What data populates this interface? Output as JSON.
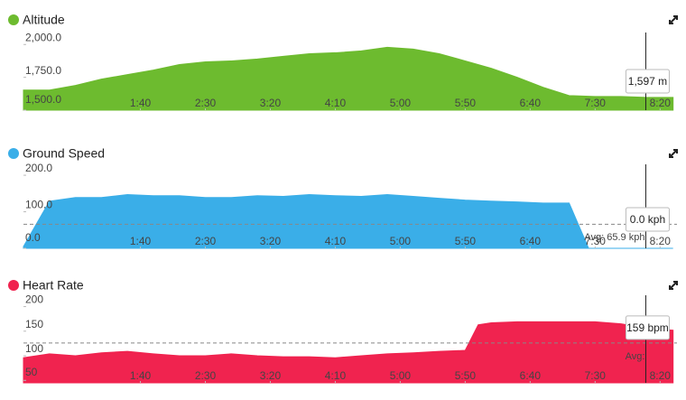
{
  "chart_data": [
    {
      "type": "area",
      "title": "Altitude",
      "color": "#6dbb2f",
      "x": [
        10,
        30,
        50,
        70,
        90,
        110,
        130,
        150,
        170,
        190,
        210,
        230,
        250,
        270,
        290,
        310,
        330,
        350,
        370,
        390,
        410,
        430,
        450,
        470,
        490,
        510
      ],
      "values": [
        1653,
        1653,
        1688,
        1736,
        1771,
        1805,
        1847,
        1868,
        1875,
        1889,
        1910,
        1930,
        1937,
        1951,
        1979,
        1965,
        1930,
        1875,
        1819,
        1750,
        1674,
        1611,
        1604,
        1604,
        1597,
        1597
      ],
      "xlim": [
        10,
        513
      ],
      "ylim": [
        1500,
        2050
      ],
      "yticks": [
        {
          "value": 1500,
          "label": "1,500.0"
        },
        {
          "value": 1750,
          "label": "1,750.0"
        },
        {
          "value": 2000,
          "label": "2,000.0"
        }
      ],
      "xticks": [
        {
          "value": 100,
          "label": "1:40"
        },
        {
          "value": 150,
          "label": "2:30"
        },
        {
          "value": 200,
          "label": "3:20"
        },
        {
          "value": 250,
          "label": "4:10"
        },
        {
          "value": 300,
          "label": "5:00"
        },
        {
          "value": 350,
          "label": "5:50"
        },
        {
          "value": 400,
          "label": "6:40"
        },
        {
          "value": 450,
          "label": "7:30"
        },
        {
          "value": 500,
          "label": "8:20"
        }
      ],
      "cursor": {
        "x": 489,
        "value": 1597,
        "label": "1,597 m"
      }
    },
    {
      "type": "area",
      "title": "Ground Speed",
      "color": "#3aaee8",
      "x": [
        10,
        30,
        50,
        70,
        90,
        110,
        130,
        150,
        170,
        190,
        210,
        230,
        250,
        270,
        290,
        310,
        330,
        350,
        370,
        390,
        410,
        430,
        445,
        470,
        490,
        510
      ],
      "values": [
        5,
        129,
        139,
        139,
        147,
        144,
        144,
        139,
        139,
        144,
        142,
        147,
        144,
        142,
        147,
        142,
        137,
        132,
        129,
        127,
        124,
        124,
        0,
        0,
        0,
        0
      ],
      "xlim": [
        10,
        513
      ],
      "ylim": [
        0,
        215
      ],
      "yticks": [
        {
          "value": 0,
          "label": "0.0"
        },
        {
          "value": 100,
          "label": "100.0"
        },
        {
          "value": 200,
          "label": "200.0"
        }
      ],
      "xticks": [
        {
          "value": 100,
          "label": "1:40"
        },
        {
          "value": 150,
          "label": "2:30"
        },
        {
          "value": 200,
          "label": "3:20"
        },
        {
          "value": 250,
          "label": "4:10"
        },
        {
          "value": 300,
          "label": "5:00"
        },
        {
          "value": 350,
          "label": "5:50"
        },
        {
          "value": 400,
          "label": "6:40"
        },
        {
          "value": 450,
          "label": "7:30"
        },
        {
          "value": 500,
          "label": "8:20"
        }
      ],
      "average": {
        "value": 65.9,
        "label": "Avg: 65.9 kph"
      },
      "cursor": {
        "x": 489,
        "value": 0,
        "label": "0.0 kph"
      }
    },
    {
      "type": "area",
      "title": "Heart Rate",
      "color": "#f0234f",
      "x": [
        10,
        30,
        50,
        70,
        90,
        110,
        130,
        150,
        170,
        190,
        210,
        230,
        250,
        270,
        290,
        310,
        330,
        350,
        360,
        370,
        390,
        410,
        430,
        450,
        470,
        490,
        510
      ],
      "values": [
        96,
        104,
        100,
        106,
        109,
        104,
        100,
        100,
        104,
        100,
        98,
        98,
        96,
        100,
        104,
        106,
        109,
        111,
        163,
        167,
        169,
        169,
        169,
        169,
        165,
        156,
        152
      ],
      "xlim": [
        10,
        513
      ],
      "ylim": [
        45,
        212
      ],
      "yticks": [
        50,
        100,
        150,
        200
      ],
      "xticks": [
        {
          "value": 100,
          "label": "1:40"
        },
        {
          "value": 150,
          "label": "2:30"
        },
        {
          "value": 200,
          "label": "3:20"
        },
        {
          "value": 250,
          "label": "4:10"
        },
        {
          "value": 300,
          "label": "5:00"
        },
        {
          "value": 350,
          "label": "5:50"
        },
        {
          "value": 400,
          "label": "6:40"
        },
        {
          "value": 450,
          "label": "7:30"
        },
        {
          "value": 500,
          "label": "8:20"
        }
      ],
      "average": {
        "value": 126,
        "label": "Avg:"
      },
      "cursor": {
        "x": 489,
        "value": 159,
        "label": "159 bpm"
      }
    }
  ]
}
